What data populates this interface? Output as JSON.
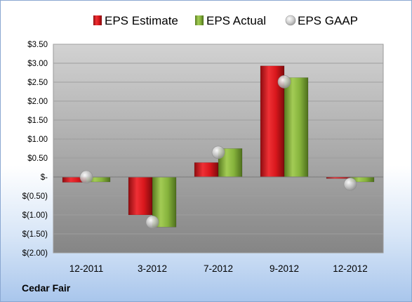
{
  "company": "Cedar Fair",
  "colors": {
    "estimate": "#e0161b",
    "actual": "#8ab83c",
    "gaap": "#c7c7c7"
  },
  "chart_data": {
    "type": "bar",
    "categories": [
      "12-2011",
      "3-2012",
      "7-2012",
      "9-2012",
      "12-2012"
    ],
    "series": [
      {
        "name": "EPS Estimate",
        "type": "bar",
        "values": [
          -0.14,
          -1.0,
          0.38,
          2.93,
          -0.04
        ]
      },
      {
        "name": "EPS Actual",
        "type": "bar",
        "values": [
          -0.13,
          -1.32,
          0.75,
          2.62,
          -0.13
        ]
      },
      {
        "name": "EPS GAAP",
        "type": "marker",
        "values": [
          0.0,
          -1.19,
          0.65,
          2.51,
          -0.19
        ]
      }
    ],
    "ylim": [
      -2.0,
      3.5
    ],
    "yticks": [
      3.5,
      3.0,
      2.5,
      2.0,
      1.5,
      1.0,
      0.5,
      0,
      -0.5,
      -1.0,
      -1.5,
      -2.0
    ],
    "ytick_labels": [
      "$3.50",
      "$3.00",
      "$2.50",
      "$2.00",
      "$1.50",
      "$1.00",
      "$0.50",
      "$-",
      "$(0.50)",
      "$(1.00)",
      "$(1.50)",
      "$(2.00)"
    ],
    "grid": true,
    "legend": "top"
  }
}
